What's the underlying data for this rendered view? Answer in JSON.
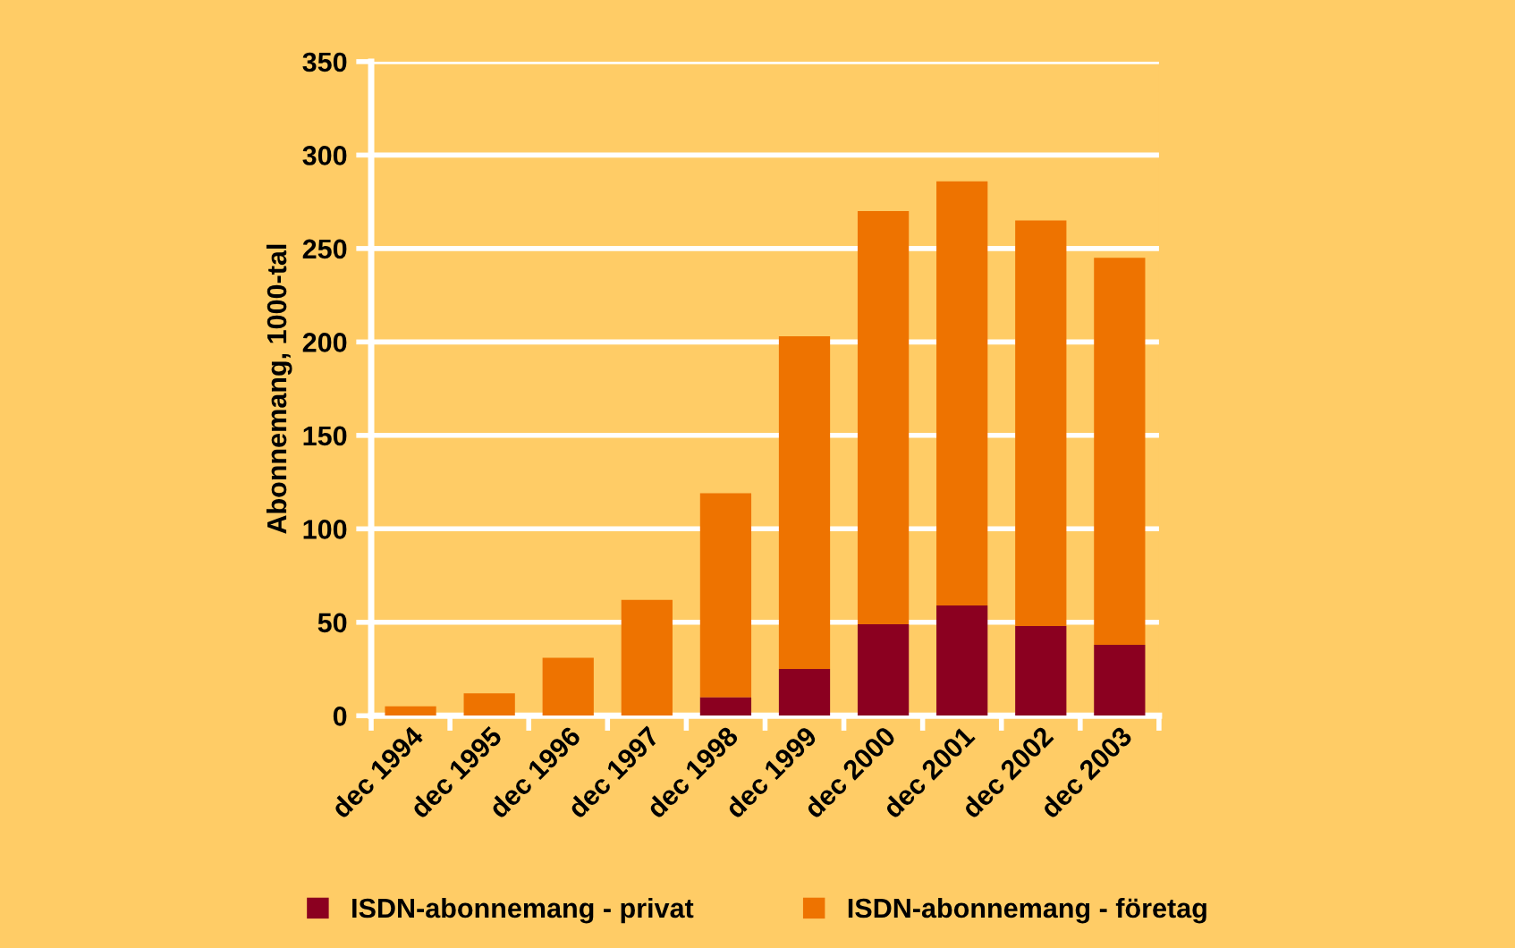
{
  "chart_data": {
    "type": "bar",
    "stacked": true,
    "ylabel": "Abonnemang, 1000-tal",
    "categories": [
      "dec 1994",
      "dec 1995",
      "dec 1996",
      "dec 1997",
      "dec 1998",
      "dec 1999",
      "dec 2000",
      "dec 2001",
      "dec 2002",
      "dec 2003"
    ],
    "series": [
      {
        "name": "ISDN-abonnemang - privat",
        "color": "#8b0020",
        "values": [
          0,
          0,
          0,
          0,
          10,
          25,
          49,
          59,
          48,
          38
        ]
      },
      {
        "name": "ISDN-abonnemang - företag",
        "color": "#ee7300",
        "values": [
          5,
          12,
          31,
          62,
          109,
          178,
          221,
          227,
          217,
          207
        ]
      }
    ],
    "ylim": [
      0,
      350
    ],
    "yticks": [
      0,
      50,
      100,
      150,
      200,
      250,
      300,
      350
    ],
    "grid": "y",
    "legend": "bottom"
  }
}
